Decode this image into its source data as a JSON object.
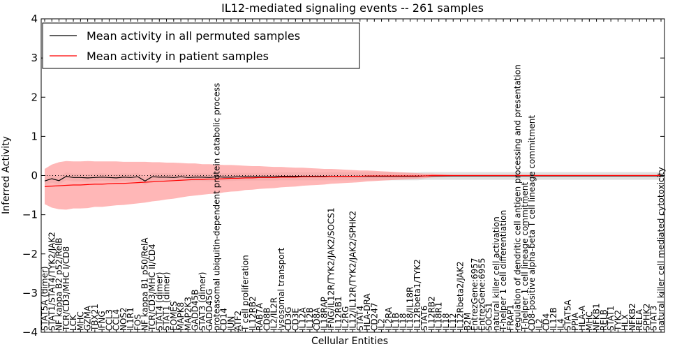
{
  "chart_data": {
    "type": "line",
    "title": "IL12-mediated signaling events -- 261 samples",
    "xlabel": "Cellular Entities",
    "ylabel": "Inferred Activity",
    "ylim": [
      -4,
      4
    ],
    "yticks": [
      -4,
      -3,
      -2,
      -1,
      0,
      1,
      2,
      3,
      4
    ],
    "ytick_labels": [
      "−4",
      "−3",
      "−2",
      "−1",
      "0",
      "1",
      "2",
      "3",
      "4"
    ],
    "legend_position": "upper-left",
    "categories": [
      "STAT5A (dimer)",
      "STAT1/STAT4/TYK2/JAK2",
      "NF kappa B2 p52/RelB",
      "TCR/CD3/MHC I/CD8",
      "LCK",
      "MHC",
      "GZMA",
      "TBX21",
      "IFNG",
      "CCL3",
      "CCL4",
      "NOS2",
      "IL1R1",
      "FOS",
      "NF kappa B1 p50/RelA",
      "TCR/CD3/MHC II/CD4",
      "STAT4 (dimer)",
      "STAT1 (dimer)",
      "EOMES",
      "MAPK8",
      "MAP2K3",
      "GADD45B",
      "STAT3 (dimer)",
      "GADD45G",
      "proteasomal ubiquitin-dependent protein catabolic process",
      "CD14",
      "JUN",
      "ATF2",
      "T cell proliferation",
      "IL12RB2",
      "RAB7A",
      "CD8B",
      "IL2/IL2R",
      "lysosomal transport",
      "CD3G",
      "CD3E",
      "IL12A",
      "IL12B",
      "CD8A",
      "IL18RAP",
      "IFNG/IL12R/TYK2/JAK2/SOCS1",
      "IL12RB1",
      "IL2RG",
      "IL12/IL12R/TYK2/JAK2/SPHK2",
      "STAT4",
      "HLA-DRA",
      "CD247",
      "IL2",
      "IL2RA",
      "IL1B",
      "IL18",
      "IL18/IL18R",
      "IL12Rbeta1/TYK2",
      "STAT6",
      "IL12RB2",
      "IL18R1",
      "IL18",
      "IL12",
      "IL12Rbeta2/JAK2",
      "B2M",
      "EntrezGene:6957",
      "EntrezGene:6955",
      "SOCS1",
      "natural killer cell activation",
      "T-helper 1 cell differentiation",
      "FRAP1",
      "regulation of dendritic cell antigen processing and presentation",
      "T-helper 1 cell lineage commitment",
      "CD8-positive alpha-beta T cell lineage commitment",
      "IL2",
      "CD4",
      "IL12B",
      "IL4",
      "STAT5A",
      "PPIA",
      "HLA-A",
      "MHC",
      "NFKB1",
      "RELB",
      "STAT1",
      "TYK2",
      "HLX",
      "NFKB2",
      "RELA",
      "SPHK2",
      "STAT3",
      "natural killer cell mediated cytotoxicity"
    ],
    "series": [
      {
        "name": "Mean activity in all permuted samples",
        "color": "#000000",
        "values": [
          -0.14,
          -0.08,
          -0.13,
          -0.02,
          -0.05,
          -0.05,
          -0.06,
          -0.05,
          -0.04,
          -0.05,
          -0.06,
          -0.04,
          -0.05,
          -0.03,
          -0.14,
          -0.03,
          -0.04,
          -0.04,
          -0.05,
          -0.03,
          -0.05,
          -0.04,
          -0.04,
          -0.05,
          -0.03,
          -0.04,
          -0.04,
          -0.03,
          -0.03,
          -0.03,
          -0.03,
          -0.03,
          -0.03,
          -0.02,
          -0.02,
          -0.02,
          -0.02,
          -0.02,
          -0.02,
          -0.02,
          -0.02,
          -0.02,
          -0.02,
          -0.02,
          -0.02,
          -0.02,
          -0.02,
          -0.02,
          -0.02,
          -0.02,
          -0.02,
          -0.02,
          -0.02,
          -0.01,
          -0.01,
          -0.01,
          -0.01,
          -0.01,
          -0.01,
          -0.01,
          -0.01,
          -0.01,
          -0.01,
          -0.01,
          -0.01,
          -0.01,
          -0.01,
          -0.01,
          -0.01,
          -0.01,
          -0.01,
          -0.01,
          -0.01,
          -0.01,
          -0.01,
          -0.01,
          -0.01,
          -0.01,
          -0.01,
          -0.01,
          -0.01,
          -0.01,
          -0.01,
          -0.01,
          -0.01,
          -0.01,
          -0.01
        ],
        "band": [
          0.1,
          0.1,
          0.1,
          0.1,
          0.1,
          0.1,
          0.1,
          0.1,
          0.1,
          0.1,
          0.1,
          0.1,
          0.1,
          0.1,
          0.1,
          0.1,
          0.1,
          0.1,
          0.1,
          0.1,
          0.1,
          0.1,
          0.1,
          0.1,
          0.1,
          0.1,
          0.1,
          0.1,
          0.1,
          0.1,
          0.1,
          0.1,
          0.1,
          0.1,
          0.1,
          0.1,
          0.1,
          0.1,
          0.1,
          0.1,
          0.1,
          0.1,
          0.1,
          0.1,
          0.1,
          0.1,
          0.1,
          0.1,
          0.1,
          0.1,
          0.1,
          0.1,
          0.1,
          0.1,
          0.1,
          0.1,
          0.1,
          0.1,
          0.1,
          0.1,
          0.1,
          0.1,
          0.1,
          0.1,
          0.1,
          0.1,
          0.1,
          0.1,
          0.1,
          0.1,
          0.1,
          0.1,
          0.1,
          0.1,
          0.1,
          0.1,
          0.1,
          0.1,
          0.1,
          0.1,
          0.1,
          0.1,
          0.1,
          0.1,
          0.1,
          0.1,
          0.1
        ]
      },
      {
        "name": "Mean activity in patient samples",
        "color": "#ff0000",
        "values": [
          -0.28,
          -0.27,
          -0.26,
          -0.25,
          -0.24,
          -0.24,
          -0.23,
          -0.22,
          -0.22,
          -0.21,
          -0.2,
          -0.2,
          -0.19,
          -0.18,
          -0.17,
          -0.16,
          -0.15,
          -0.14,
          -0.13,
          -0.12,
          -0.11,
          -0.1,
          -0.1,
          -0.09,
          -0.09,
          -0.08,
          -0.07,
          -0.07,
          -0.06,
          -0.06,
          -0.05,
          -0.05,
          -0.05,
          -0.04,
          -0.04,
          -0.04,
          -0.03,
          -0.03,
          -0.03,
          -0.03,
          -0.02,
          -0.02,
          -0.02,
          -0.02,
          -0.02,
          -0.01,
          -0.01,
          -0.01,
          -0.01,
          -0.01,
          -0.01,
          -0.01,
          -0.01,
          -0.01,
          0,
          0,
          0,
          0,
          0,
          0,
          0,
          0,
          0,
          0,
          0,
          0,
          0,
          0,
          0,
          0,
          0,
          0,
          0,
          0,
          0,
          0,
          0,
          0,
          0,
          0,
          0,
          0,
          0,
          0,
          0,
          0,
          0
        ],
        "band": [
          0.45,
          0.55,
          0.6,
          0.62,
          0.6,
          0.6,
          0.6,
          0.58,
          0.58,
          0.57,
          0.56,
          0.55,
          0.54,
          0.53,
          0.52,
          0.5,
          0.49,
          0.47,
          0.46,
          0.44,
          0.42,
          0.41,
          0.39,
          0.38,
          0.37,
          0.35,
          0.34,
          0.33,
          0.31,
          0.3,
          0.29,
          0.28,
          0.27,
          0.26,
          0.25,
          0.24,
          0.23,
          0.22,
          0.21,
          0.2,
          0.19,
          0.18,
          0.17,
          0.16,
          0.15,
          0.14,
          0.13,
          0.12,
          0.11,
          0.1,
          0.09,
          0.08,
          0.07,
          0.06,
          0.05,
          0.04,
          0.03,
          0.02,
          0.02,
          0.02,
          0.02,
          0.02,
          0.02,
          0.02,
          0.02,
          0.02,
          0.02,
          0.02,
          0.02,
          0.02,
          0.02,
          0.02,
          0.02,
          0.02,
          0.02,
          0.02,
          0.02,
          0.02,
          0.02,
          0.02,
          0.02,
          0.02,
          0.02,
          0.02,
          0.02,
          0.02,
          0.02
        ]
      }
    ],
    "reference_line": {
      "y": 0,
      "style": "dotted"
    },
    "permuted_band_color": "#cccccc",
    "patient_band_color": "#ff9999"
  }
}
